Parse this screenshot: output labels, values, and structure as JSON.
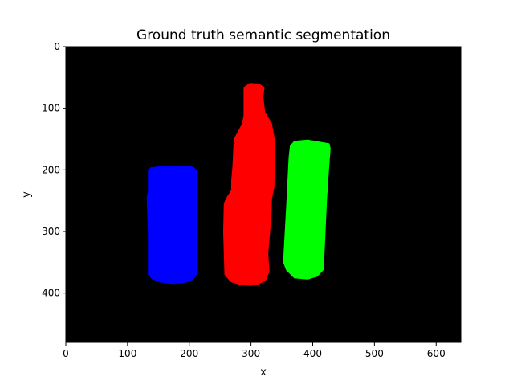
{
  "figure": {
    "title": "Ground truth semantic segmentation",
    "xlabel": "x",
    "ylabel": "y",
    "image_width": 640,
    "image_height": 480,
    "x_ticks": [
      0,
      100,
      200,
      300,
      400,
      500,
      600
    ],
    "y_ticks": [
      0,
      100,
      200,
      300,
      400
    ],
    "background_color": "#000000",
    "frame_color": "#000000"
  },
  "segments": [
    {
      "label": "can",
      "color": "#0000ff",
      "polygon": [
        [
          133,
          202
        ],
        [
          137,
          196
        ],
        [
          152,
          194
        ],
        [
          170,
          193
        ],
        [
          190,
          193
        ],
        [
          207,
          195
        ],
        [
          213,
          201
        ],
        [
          213,
          370
        ],
        [
          204,
          380
        ],
        [
          190,
          384
        ],
        [
          172,
          385
        ],
        [
          154,
          383
        ],
        [
          139,
          377
        ],
        [
          133,
          370
        ],
        [
          133,
          300
        ],
        [
          131,
          245
        ],
        [
          133,
          235
        ]
      ]
    },
    {
      "label": "bottle",
      "color": "#ff0000",
      "polygon": [
        [
          288,
          66
        ],
        [
          298,
          59
        ],
        [
          313,
          60
        ],
        [
          322,
          66
        ],
        [
          320,
          82
        ],
        [
          323,
          106
        ],
        [
          334,
          125
        ],
        [
          339,
          153
        ],
        [
          338,
          228
        ],
        [
          334,
          246
        ],
        [
          333,
          277
        ],
        [
          328,
          336
        ],
        [
          330,
          365
        ],
        [
          324,
          380
        ],
        [
          312,
          386
        ],
        [
          300,
          388
        ],
        [
          283,
          387
        ],
        [
          267,
          382
        ],
        [
          257,
          370
        ],
        [
          256,
          338
        ],
        [
          255,
          300
        ],
        [
          256,
          254
        ],
        [
          262,
          242
        ],
        [
          268,
          233
        ],
        [
          268,
          218
        ],
        [
          270,
          193
        ],
        [
          272,
          150
        ],
        [
          285,
          126
        ],
        [
          288,
          112
        ]
      ]
    },
    {
      "label": "cup",
      "color": "#00ff00",
      "polygon": [
        [
          361,
          180
        ],
        [
          363,
          161
        ],
        [
          370,
          153
        ],
        [
          392,
          151
        ],
        [
          427,
          157
        ],
        [
          429,
          165
        ],
        [
          427,
          190
        ],
        [
          423,
          250
        ],
        [
          418,
          362
        ],
        [
          408,
          373
        ],
        [
          392,
          378
        ],
        [
          370,
          376
        ],
        [
          357,
          363
        ],
        [
          352,
          350
        ],
        [
          353,
          330
        ],
        [
          357,
          260
        ]
      ]
    }
  ]
}
